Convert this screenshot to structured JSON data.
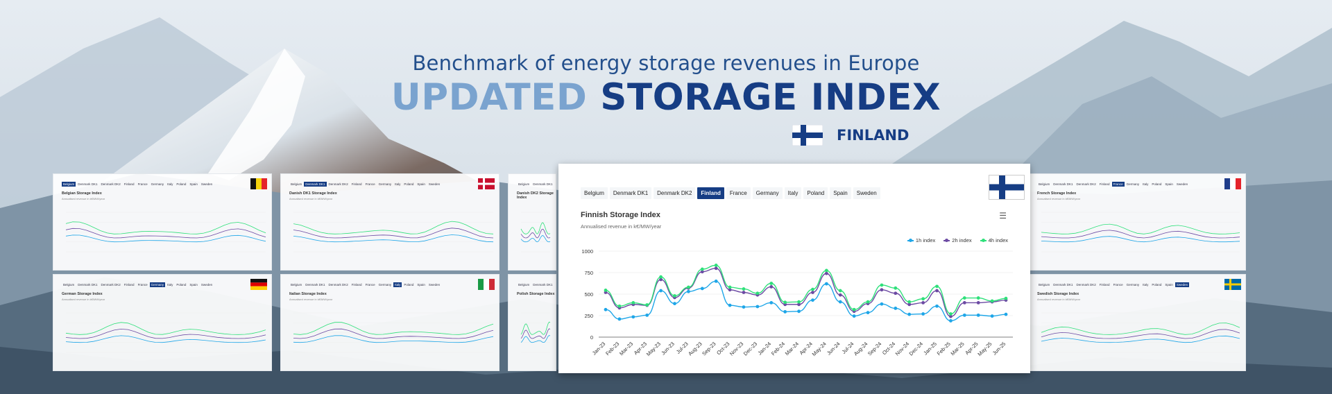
{
  "header": {
    "subtitle": "Benchmark of energy storage revenues in Europe",
    "title_part1": "UPDATED",
    "title_part2": "STORAGE INDEX",
    "country": "FINLAND"
  },
  "colors": {
    "dark_blue": "#163d84",
    "light_blue": "#7aa3cf",
    "series_1h": "#1ea6e8",
    "series_2h": "#6c4aa3",
    "series_4h": "#2ee07a"
  },
  "main_panel": {
    "tabs": [
      "Belgium",
      "Denmark DK1",
      "Denmark DK2",
      "Finland",
      "France",
      "Germany",
      "Italy",
      "Poland",
      "Spain",
      "Sweden"
    ],
    "active_tab": "Finland",
    "flag_icon": "finland-flag-icon",
    "menu_icon": "hamburger-menu-icon",
    "chart_title": "Finnish Storage Index",
    "chart_subtitle": "Annualised revenue in k€/MW/year"
  },
  "chart_data": {
    "type": "line",
    "title": "Finnish Storage Index",
    "subtitle": "Annualised revenue in k€/MW/year",
    "xlabel": "",
    "ylabel": "",
    "ylim": [
      0,
      1000
    ],
    "yticks": [
      0,
      250,
      500,
      750,
      1000
    ],
    "grid": true,
    "legend_position": "top-right",
    "categories": [
      "Jan-23",
      "Feb-23",
      "Mar-23",
      "Apr-23",
      "May-23",
      "Jun-23",
      "Jul-23",
      "Aug-23",
      "Sep-23",
      "Oct-23",
      "Nov-23",
      "Dec-23",
      "Jan-24",
      "Feb-24",
      "Mar-24",
      "Apr-24",
      "May-24",
      "Jun-24",
      "Jul-24",
      "Aug-24",
      "Sep-24",
      "Oct-24",
      "Nov-24",
      "Dec-24",
      "Jan-25",
      "Feb-25",
      "Mar-25",
      "Apr-25",
      "May-25",
      "Jun-25"
    ],
    "series": [
      {
        "name": "1h index",
        "color": "#1ea6e8",
        "values": [
          320,
          210,
          235,
          255,
          540,
          390,
          530,
          565,
          650,
          370,
          350,
          355,
          400,
          295,
          300,
          430,
          620,
          410,
          245,
          285,
          385,
          335,
          265,
          270,
          360,
          190,
          255,
          255,
          245,
          265
        ]
      },
      {
        "name": "2h index",
        "color": "#6c4aa3",
        "values": [
          520,
          340,
          380,
          370,
          670,
          460,
          570,
          760,
          800,
          550,
          520,
          490,
          585,
          380,
          380,
          520,
          740,
          490,
          300,
          390,
          550,
          510,
          380,
          400,
          540,
          240,
          400,
          400,
          410,
          430
        ]
      },
      {
        "name": "4h index",
        "color": "#2ee07a",
        "values": [
          545,
          360,
          400,
          375,
          700,
          480,
          580,
          790,
          835,
          580,
          560,
          510,
          625,
          405,
          410,
          555,
          775,
          540,
          320,
          410,
          605,
          570,
          410,
          445,
          590,
          270,
          455,
          455,
          420,
          450
        ]
      }
    ]
  },
  "mini_panels": [
    {
      "title": "Belgian Storage Index",
      "subtitle": "Annualised revenue in k€/MW/year",
      "active_tab": "Belgium",
      "flag": "belgium-flag-icon",
      "tabs": [
        "Belgium",
        "Denmark DK1",
        "Denmark DK2",
        "Finland",
        "France",
        "Germany",
        "Italy",
        "Poland",
        "Spain",
        "Sweden"
      ]
    },
    {
      "title": "Danish DK1 Storage Index",
      "subtitle": "Annualised revenue in k€/MW/year",
      "active_tab": "Denmark DK1",
      "flag": "denmark-flag-icon",
      "tabs": [
        "Belgium",
        "Denmark DK1",
        "Denmark DK2",
        "Finland",
        "France",
        "Germany",
        "Italy",
        "Poland",
        "Spain",
        "Sweden"
      ]
    },
    {
      "title": "Danish DK2 Storage Index",
      "subtitle": "",
      "active_tab": "Denmark DK2",
      "flag": "",
      "tabs": [
        "Belgium",
        "Denmark DK1",
        "Denmark"
      ]
    },
    {
      "title": "French Storage Index",
      "subtitle": "Annualised revenue in k€/MW/year",
      "active_tab": "France",
      "flag": "france-flag-icon",
      "tabs": [
        "Belgium",
        "Denmark DK1",
        "Denmark DK2",
        "Finland",
        "France",
        "Germany",
        "Italy",
        "Poland",
        "Spain",
        "Sweden"
      ]
    },
    {
      "title": "German Storage Index",
      "subtitle": "Annualised revenue in k€/MW/year",
      "active_tab": "Germany",
      "flag": "germany-flag-icon",
      "tabs": [
        "Belgium",
        "Denmark DK1",
        "Denmark DK2",
        "Finland",
        "France",
        "Germany",
        "Italy",
        "Poland",
        "Spain",
        "Sweden"
      ]
    },
    {
      "title": "Italian Storage Index",
      "subtitle": "Annualised revenue in k€/MW/year",
      "active_tab": "Italy",
      "flag": "italy-flag-icon",
      "tabs": [
        "Belgium",
        "Denmark DK1",
        "Denmark DK2",
        "Finland",
        "France",
        "Germany",
        "Italy",
        "Poland",
        "Spain",
        "Sweden"
      ]
    },
    {
      "title": "Polish Storage Index",
      "subtitle": "",
      "active_tab": "Poland",
      "flag": "",
      "tabs": [
        "Belgium",
        "Denmark DK1",
        "Denmark"
      ]
    },
    {
      "title": "Swedish Storage Index",
      "subtitle": "Annualised revenue in k€/MW/year",
      "active_tab": "Sweden",
      "flag": "sweden-flag-icon",
      "tabs": [
        "Belgium",
        "Denmark DK1",
        "Denmark DK2",
        "Finland",
        "France",
        "Germany",
        "Italy",
        "Poland",
        "Spain",
        "Sweden"
      ]
    }
  ]
}
